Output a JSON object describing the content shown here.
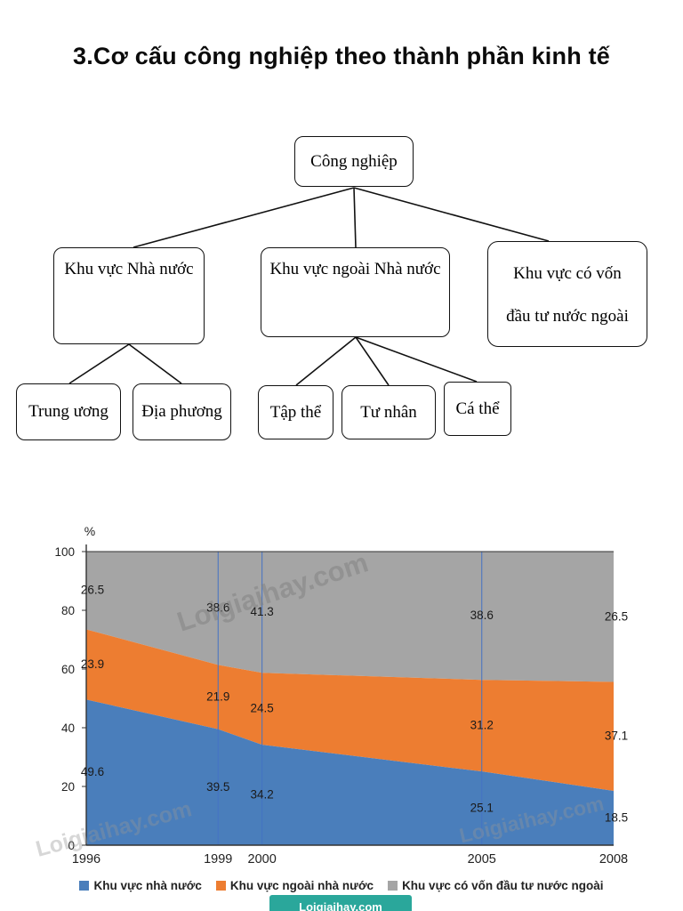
{
  "page": {
    "title": "3.Cơ cấu công nghiệp theo thành phần kinh tế"
  },
  "diagram": {
    "root": "Công nghiệp",
    "level2": [
      "Khu vực Nhà nước",
      "Khu vực ngoài Nhà nước",
      "Khu vực có vốn đầu tư nước ngoài"
    ],
    "state_children": [
      "Trung ương",
      "Địa phương"
    ],
    "nonstate_children": [
      "Tập thể",
      "Tư nhân",
      "Cá thể"
    ]
  },
  "chart_data": {
    "type": "area",
    "stacked": true,
    "x": [
      1996,
      1999,
      2000,
      2005,
      2008
    ],
    "x_labels": [
      "1996",
      "1999",
      "2000",
      "2005",
      "2008"
    ],
    "series": [
      {
        "name": "Khu vực nhà nước",
        "color": "#4a7ebb",
        "values": [
          49.6,
          39.5,
          34.2,
          25.1,
          18.5
        ]
      },
      {
        "name": "Khu vực ngoài nhà nước",
        "color": "#ed7d31",
        "values": [
          23.9,
          21.9,
          24.5,
          31.2,
          37.1
        ]
      },
      {
        "name": "Khu vực có vốn đầu tư nước ngoài",
        "color": "#a5a5a5",
        "values": [
          26.5,
          38.6,
          41.3,
          38.6,
          26.5
        ]
      }
    ],
    "ylabel": "%",
    "ylim": [
      0,
      100
    ],
    "yticks": [
      0,
      20,
      40,
      60,
      80,
      100
    ],
    "gridline_years": [
      1999,
      2000,
      2005
    ],
    "gridline_color": "#4472c4",
    "legend_position": "bottom"
  },
  "watermark": {
    "text": "Loigiaihay.com"
  },
  "badge": {
    "text": "Loigiaihay.com"
  }
}
